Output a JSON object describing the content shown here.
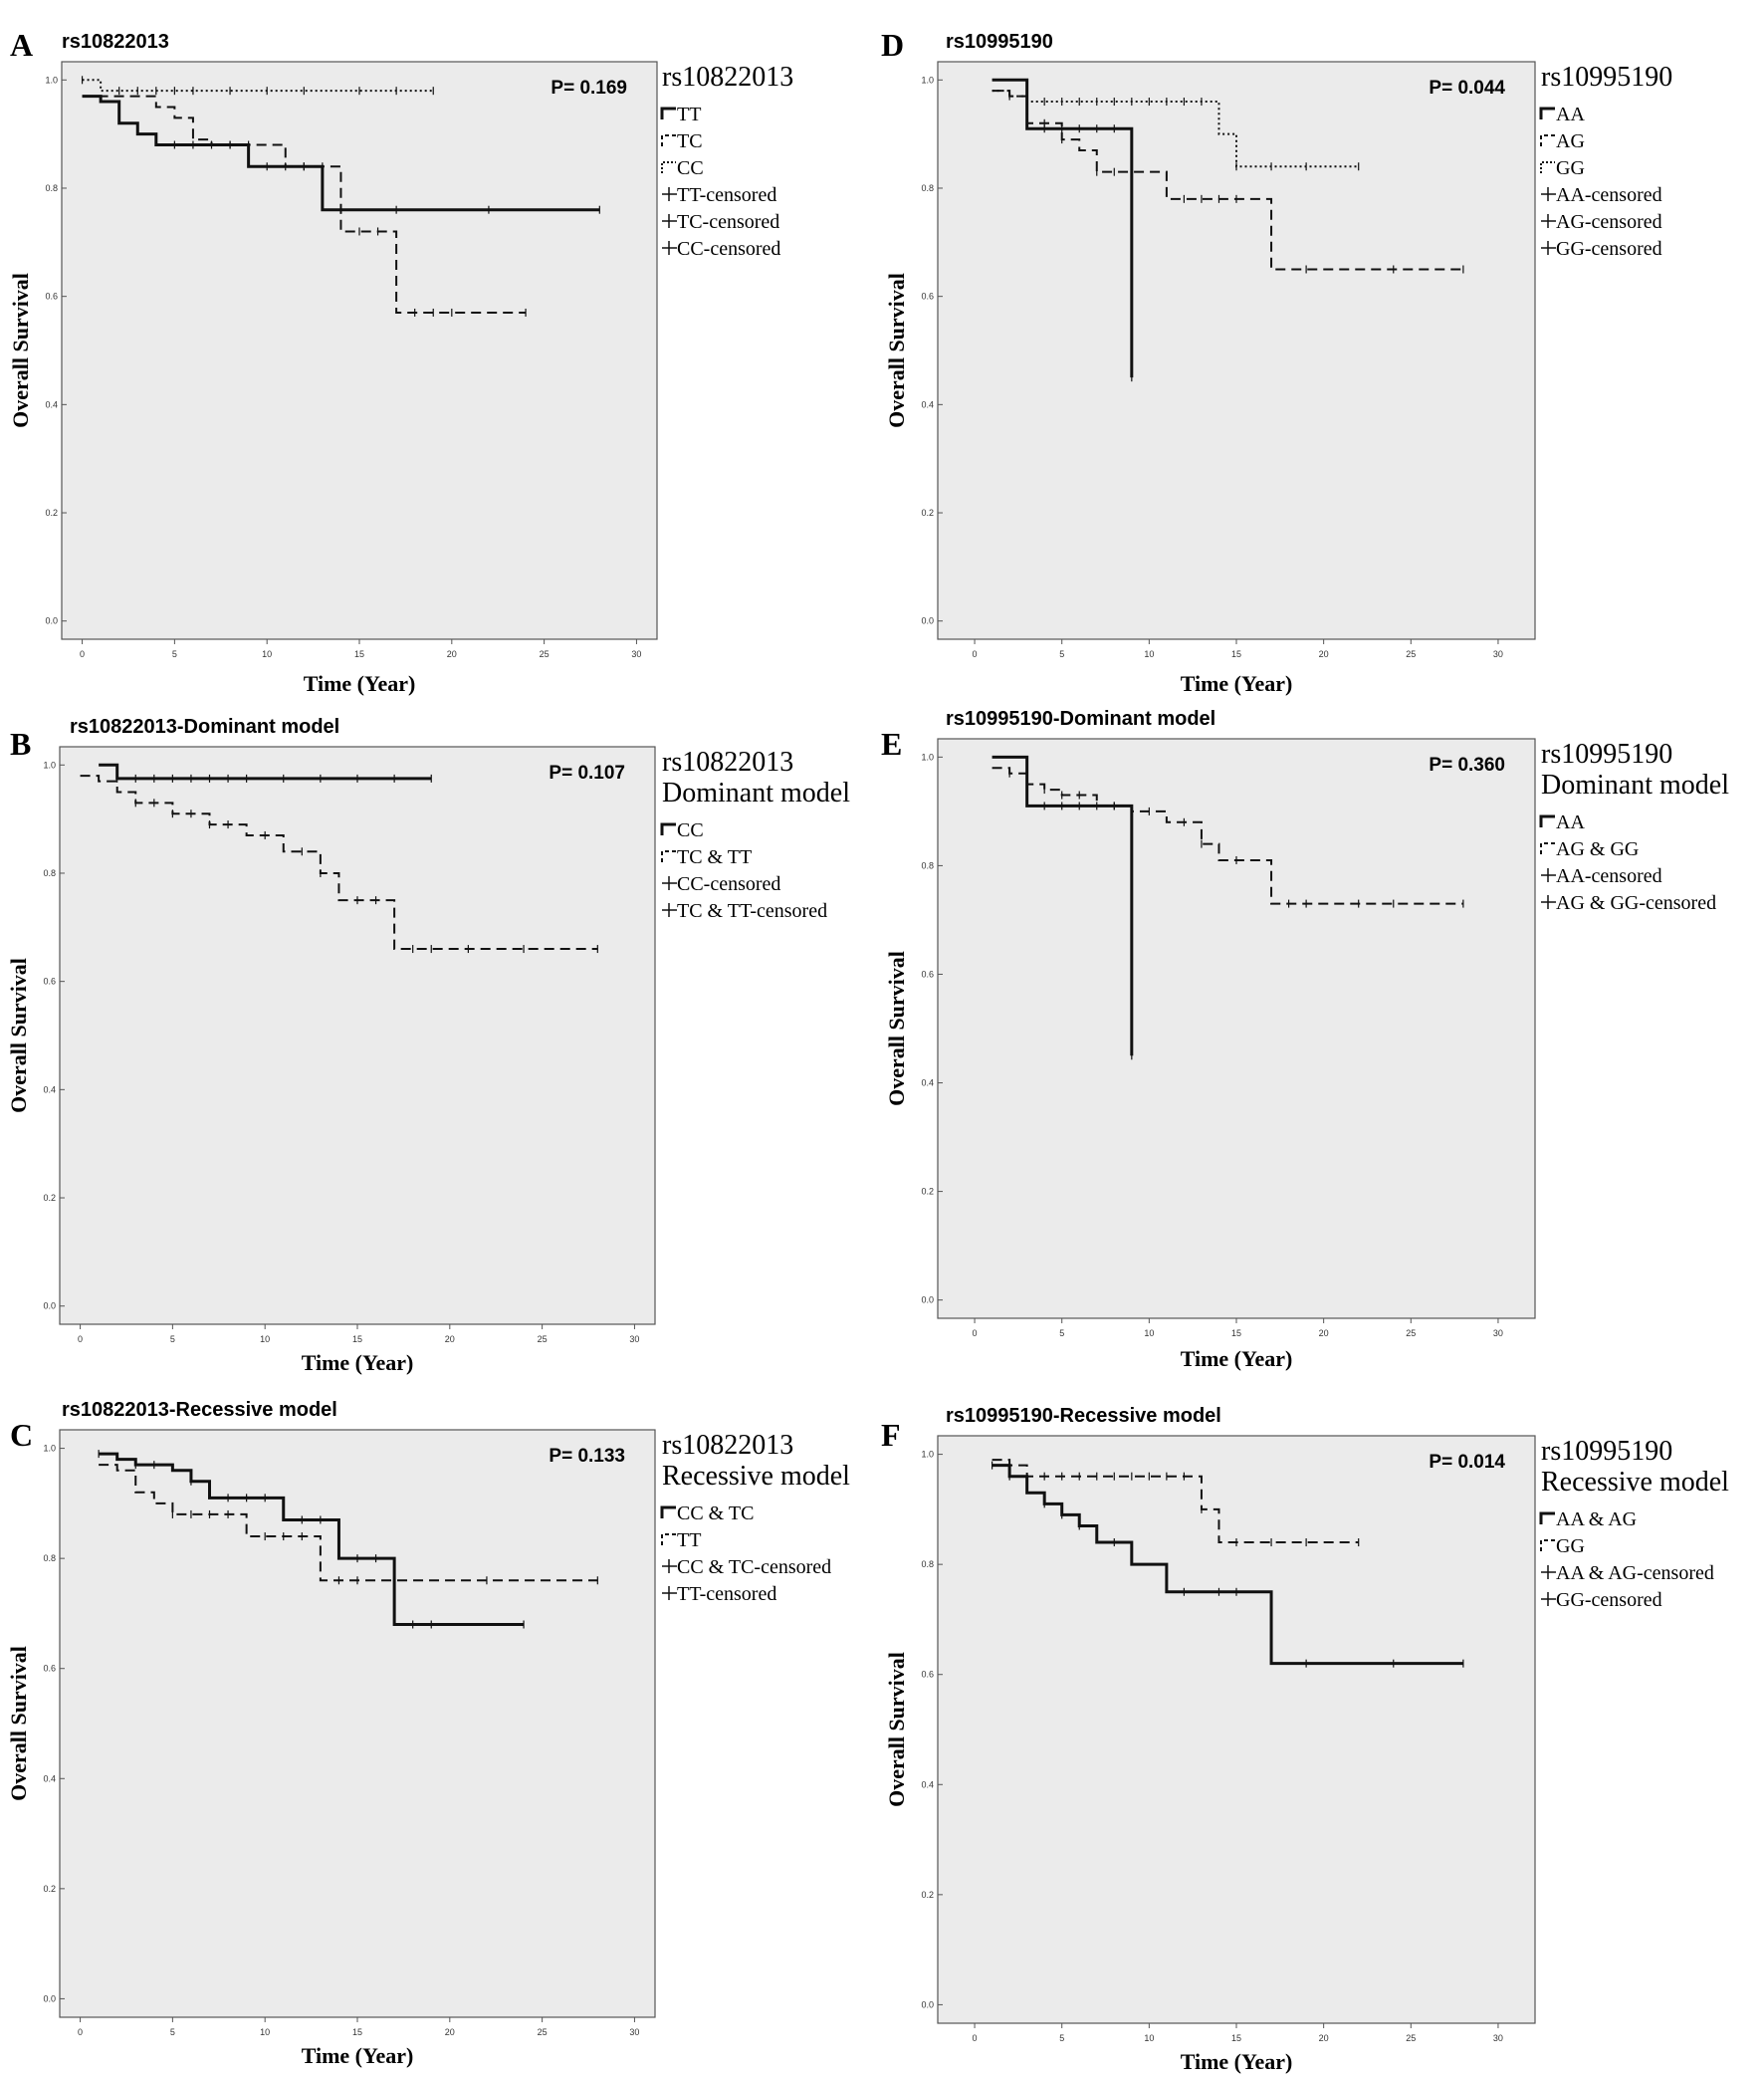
{
  "chart_data": [
    {
      "panel_letter": "A",
      "type": "line",
      "subtype": "kaplan-meier",
      "title": "rs10822013",
      "p_value": "P= 0.169",
      "xlabel": "Time (Year)",
      "ylabel": "Overall Survival",
      "xlim": [
        -1,
        31
      ],
      "ylim": [
        -0.03,
        1.03
      ],
      "x_ticks": [
        "0",
        "5",
        "10",
        "15",
        "20",
        "25",
        "30"
      ],
      "y_ticks": [
        "0.0",
        "0.2",
        "0.4",
        "0.6",
        "0.8",
        "1.0"
      ],
      "grid": false,
      "legend_title": [
        "rs10822013"
      ],
      "legend_labels": [
        "TT",
        "TC",
        "CC",
        "TT-censored",
        "TC-censored",
        "CC-censored"
      ],
      "series": [
        {
          "name": "TT",
          "style": "solid",
          "steps": [
            [
              0,
              0.97
            ],
            [
              1,
              0.96
            ],
            [
              2,
              0.92
            ],
            [
              3,
              0.9
            ],
            [
              4,
              0.88
            ],
            [
              9,
              0.84
            ],
            [
              13,
              0.76
            ],
            [
              28,
              0.76
            ]
          ],
          "censored": [
            5,
            6,
            7,
            8,
            10,
            11,
            12,
            14,
            17,
            22,
            28
          ]
        },
        {
          "name": "TC",
          "style": "dashed",
          "steps": [
            [
              0,
              0.97
            ],
            [
              4,
              0.95
            ],
            [
              5,
              0.93
            ],
            [
              6,
              0.89
            ],
            [
              7,
              0.88
            ],
            [
              11,
              0.84
            ],
            [
              14,
              0.72
            ],
            [
              17,
              0.57
            ],
            [
              24,
              0.57
            ]
          ],
          "censored": [
            8,
            9,
            12,
            13,
            15,
            16,
            18,
            19,
            20,
            24
          ]
        },
        {
          "name": "CC",
          "style": "dotted",
          "steps": [
            [
              0,
              1.0
            ],
            [
              1,
              0.98
            ],
            [
              19,
              0.98
            ]
          ],
          "censored": [
            0,
            2,
            3,
            4,
            5,
            6,
            8,
            10,
            12,
            15,
            17,
            19
          ]
        }
      ]
    },
    {
      "panel_letter": "B",
      "type": "line",
      "subtype": "kaplan-meier",
      "title": "rs10822013-Dominant model",
      "p_value": "P= 0.107",
      "xlabel": "Time (Year)",
      "ylabel": "Overall Survival",
      "xlim": [
        -1,
        31
      ],
      "ylim": [
        -0.03,
        1.03
      ],
      "x_ticks": [
        "0",
        "5",
        "10",
        "15",
        "20",
        "25",
        "30"
      ],
      "y_ticks": [
        "0.0",
        "0.2",
        "0.4",
        "0.6",
        "0.8",
        "1.0"
      ],
      "grid": false,
      "legend_title": [
        "rs10822013",
        "Dominant model"
      ],
      "legend_labels": [
        "CC",
        "TC & TT",
        "CC-censored",
        "TC & TT-censored"
      ],
      "series": [
        {
          "name": "CC",
          "style": "solid",
          "steps": [
            [
              1,
              1.0
            ],
            [
              2,
              0.975
            ],
            [
              19,
              0.975
            ]
          ],
          "censored": [
            2,
            3,
            4,
            5,
            6,
            7,
            8,
            9,
            11,
            13,
            15,
            17,
            19
          ]
        },
        {
          "name": "TC & TT",
          "style": "dashed",
          "steps": [
            [
              0,
              0.98
            ],
            [
              1,
              0.97
            ],
            [
              2,
              0.95
            ],
            [
              3,
              0.93
            ],
            [
              5,
              0.91
            ],
            [
              7,
              0.89
            ],
            [
              9,
              0.87
            ],
            [
              11,
              0.84
            ],
            [
              13,
              0.8
            ],
            [
              14,
              0.75
            ],
            [
              17,
              0.66
            ],
            [
              28,
              0.66
            ]
          ],
          "censored": [
            3,
            4,
            5,
            6,
            7,
            8,
            10,
            12,
            13,
            15,
            16,
            18,
            19,
            21,
            24,
            28
          ]
        }
      ]
    },
    {
      "panel_letter": "C",
      "type": "line",
      "subtype": "kaplan-meier",
      "title": "rs10822013-Recessive model",
      "p_value": "P= 0.133",
      "xlabel": "Time (Year)",
      "ylabel": "Overall Survival",
      "xlim": [
        -1,
        31
      ],
      "ylim": [
        -0.03,
        1.03
      ],
      "x_ticks": [
        "0",
        "5",
        "10",
        "15",
        "20",
        "25",
        "30"
      ],
      "y_ticks": [
        "0.0",
        "0.2",
        "0.4",
        "0.6",
        "0.8",
        "1.0"
      ],
      "grid": false,
      "legend_title": [
        "rs10822013",
        "Recessive model"
      ],
      "legend_labels": [
        "CC & TC",
        "TT",
        "CC & TC-censored",
        "TT-censored"
      ],
      "series": [
        {
          "name": "CC & TC",
          "style": "solid",
          "steps": [
            [
              1,
              0.99
            ],
            [
              2,
              0.98
            ],
            [
              3,
              0.97
            ],
            [
              5,
              0.96
            ],
            [
              6,
              0.94
            ],
            [
              7,
              0.91
            ],
            [
              11,
              0.87
            ],
            [
              14,
              0.8
            ],
            [
              17,
              0.68
            ],
            [
              24,
              0.68
            ]
          ],
          "censored": [
            1,
            3,
            4,
            6,
            8,
            9,
            10,
            12,
            13,
            15,
            16,
            18,
            19,
            24
          ]
        },
        {
          "name": "TT",
          "style": "dashed",
          "steps": [
            [
              1,
              0.97
            ],
            [
              2,
              0.96
            ],
            [
              3,
              0.92
            ],
            [
              4,
              0.9
            ],
            [
              5,
              0.88
            ],
            [
              9,
              0.84
            ],
            [
              13,
              0.76
            ],
            [
              28,
              0.76
            ]
          ],
          "censored": [
            5,
            6,
            7,
            8,
            10,
            11,
            12,
            14,
            15,
            17,
            22,
            28
          ]
        }
      ]
    },
    {
      "panel_letter": "D",
      "type": "line",
      "subtype": "kaplan-meier",
      "title": "rs10995190",
      "p_value": "P= 0.044",
      "xlabel": "Time  (Year)",
      "ylabel": "Overall Survival",
      "xlim": [
        -2,
        32
      ],
      "ylim": [
        -0.03,
        1.03
      ],
      "x_ticks": [
        "0",
        "5",
        "10",
        "15",
        "20",
        "25",
        "30"
      ],
      "y_ticks": [
        "0.0",
        "0.2",
        "0.4",
        "0.6",
        "0.8",
        "1.0"
      ],
      "grid": false,
      "legend_title": [
        "rs10995190"
      ],
      "legend_labels": [
        "AA",
        "AG",
        "GG",
        "AA-censored",
        "AG-censored",
        "GG-censored"
      ],
      "series": [
        {
          "name": "AA",
          "style": "solid",
          "steps": [
            [
              1,
              1.0
            ],
            [
              3,
              0.91
            ],
            [
              9,
              0.45
            ]
          ],
          "censored": [
            4,
            5,
            6,
            7,
            8,
            9
          ]
        },
        {
          "name": "AG",
          "style": "dashed",
          "steps": [
            [
              1,
              0.98
            ],
            [
              2,
              0.97
            ],
            [
              3,
              0.92
            ],
            [
              5,
              0.89
            ],
            [
              6,
              0.87
            ],
            [
              7,
              0.83
            ],
            [
              11,
              0.78
            ],
            [
              17,
              0.65
            ],
            [
              28,
              0.65
            ]
          ],
          "censored": [
            4,
            5,
            7,
            8,
            9,
            12,
            13,
            14,
            15,
            19,
            24,
            28
          ]
        },
        {
          "name": "GG",
          "style": "dotted",
          "steps": [
            [
              1,
              0.98
            ],
            [
              2,
              0.97
            ],
            [
              3,
              0.96
            ],
            [
              14,
              0.9
            ],
            [
              15,
              0.84
            ],
            [
              22,
              0.84
            ]
          ],
          "censored": [
            2,
            4,
            5,
            6,
            7,
            8,
            9,
            10,
            11,
            12,
            13,
            15,
            17,
            19,
            22
          ]
        }
      ]
    },
    {
      "panel_letter": "E",
      "type": "line",
      "subtype": "kaplan-meier",
      "title": "rs10995190-Dominant model",
      "p_value": "P= 0.360",
      "xlabel": "Time (Year)",
      "ylabel": "Overall Survival",
      "xlim": [
        -2,
        32
      ],
      "ylim": [
        -0.03,
        1.03
      ],
      "x_ticks": [
        "0",
        "5",
        "10",
        "15",
        "20",
        "25",
        "30"
      ],
      "y_ticks": [
        "0.0",
        "0.2",
        "0.4",
        "0.6",
        "0.8",
        "1.0"
      ],
      "grid": false,
      "legend_title": [
        "rs10995190",
        "Dominant model"
      ],
      "legend_labels": [
        "AA",
        "AG & GG",
        "AA-censored",
        "AG & GG-censored"
      ],
      "series": [
        {
          "name": "AA",
          "style": "solid",
          "steps": [
            [
              1,
              1.0
            ],
            [
              3,
              0.91
            ],
            [
              9,
              0.45
            ]
          ],
          "censored": [
            4,
            5,
            6,
            7,
            8,
            9
          ]
        },
        {
          "name": "AG & GG",
          "style": "dashed",
          "steps": [
            [
              1,
              0.98
            ],
            [
              2,
              0.97
            ],
            [
              3,
              0.95
            ],
            [
              4,
              0.94
            ],
            [
              5,
              0.93
            ],
            [
              7,
              0.91
            ],
            [
              9,
              0.9
            ],
            [
              11,
              0.88
            ],
            [
              13,
              0.84
            ],
            [
              14,
              0.81
            ],
            [
              17,
              0.73
            ],
            [
              28,
              0.73
            ]
          ],
          "censored": [
            2,
            4,
            5,
            6,
            8,
            10,
            12,
            13,
            15,
            18,
            19,
            22,
            24,
            28
          ]
        }
      ]
    },
    {
      "panel_letter": "F",
      "type": "line",
      "subtype": "kaplan-meier",
      "title": "rs10995190-Recessive model",
      "p_value": "P= 0.014",
      "xlabel": "Time (Year)",
      "ylabel": "Overall Survival",
      "xlim": [
        -2,
        32
      ],
      "ylim": [
        -0.03,
        1.03
      ],
      "x_ticks": [
        "0",
        "5",
        "10",
        "15",
        "20",
        "25",
        "30"
      ],
      "y_ticks": [
        "0.0",
        "0.2",
        "0.4",
        "0.6",
        "0.8",
        "1.0"
      ],
      "grid": false,
      "legend_title": [
        "rs10995190",
        "Recessive model"
      ],
      "legend_labels": [
        "AA & AG",
        "GG",
        "AA & AG-censored",
        "GG-censored"
      ],
      "series": [
        {
          "name": "AA & AG",
          "style": "solid",
          "steps": [
            [
              1,
              0.98
            ],
            [
              2,
              0.96
            ],
            [
              3,
              0.93
            ],
            [
              4,
              0.91
            ],
            [
              5,
              0.89
            ],
            [
              6,
              0.87
            ],
            [
              7,
              0.84
            ],
            [
              9,
              0.8
            ],
            [
              11,
              0.75
            ],
            [
              17,
              0.62
            ],
            [
              28,
              0.62
            ]
          ],
          "censored": [
            1,
            2,
            4,
            5,
            6,
            8,
            12,
            14,
            15,
            19,
            24,
            28
          ]
        },
        {
          "name": "GG",
          "style": "dashed",
          "steps": [
            [
              1,
              0.99
            ],
            [
              2,
              0.98
            ],
            [
              3,
              0.96
            ],
            [
              13,
              0.9
            ],
            [
              14,
              0.84
            ],
            [
              22,
              0.84
            ]
          ],
          "censored": [
            2,
            4,
            5,
            6,
            7,
            8,
            9,
            10,
            11,
            12,
            13,
            15,
            17,
            19,
            22
          ]
        }
      ]
    }
  ]
}
